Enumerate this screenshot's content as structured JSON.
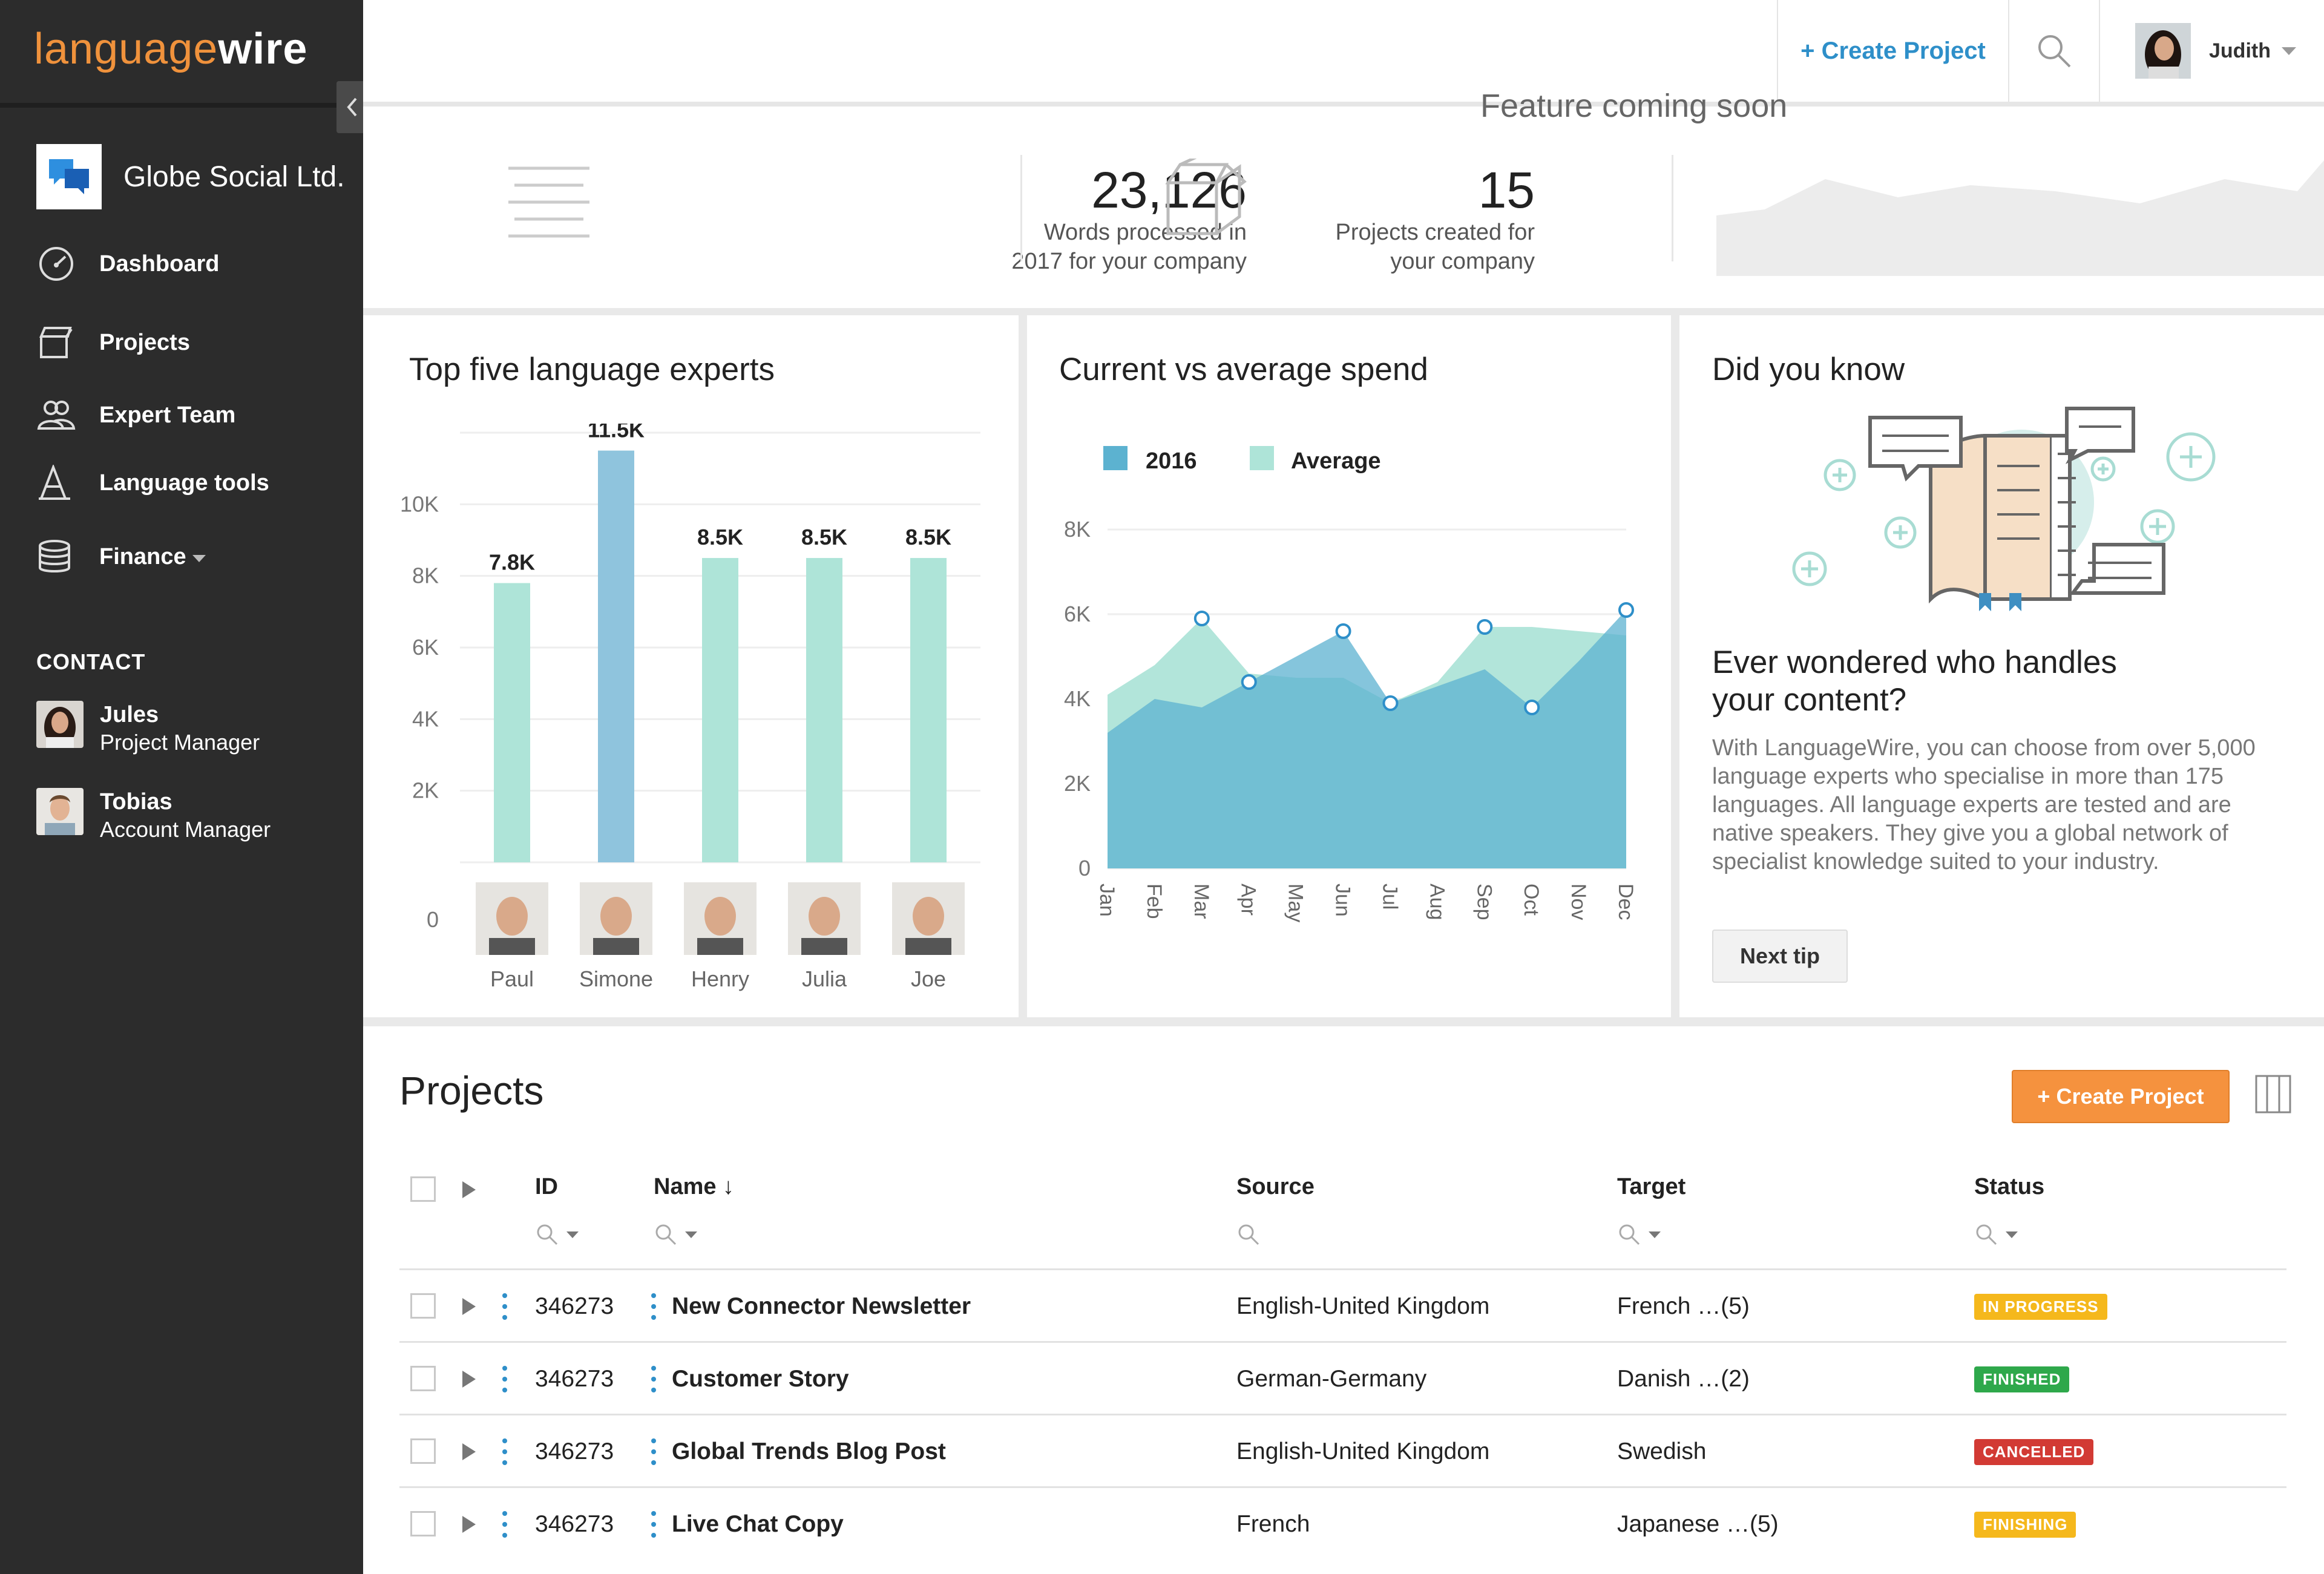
{
  "brand": {
    "logo_part1": "language",
    "logo_part2": "wire",
    "company": "Globe Social Ltd."
  },
  "nav": [
    {
      "label": "Dashboard",
      "icon": "dashboard-gauge-icon"
    },
    {
      "label": "Projects",
      "icon": "box-icon"
    },
    {
      "label": "Expert Team",
      "icon": "team-icon"
    },
    {
      "label": "Language tools",
      "icon": "language-tools-icon"
    },
    {
      "label": "Finance",
      "icon": "coins-icon"
    }
  ],
  "contact": {
    "title": "CONTACT",
    "people": [
      {
        "name": "Jules",
        "role": "Project Manager"
      },
      {
        "name": "Tobias",
        "role": "Account Manager"
      }
    ]
  },
  "topbar": {
    "create_label": "+ Create Project",
    "user_name": "Judith"
  },
  "stats": {
    "words_value": "23,126",
    "words_label_1": "Words processed in",
    "words_label_2": "2017 for your company",
    "projects_value": "15",
    "projects_label_1": "Projects created for",
    "projects_label_2": "your company",
    "feature_text": "Feature coming soon"
  },
  "experts_card": {
    "title": "Top five language experts"
  },
  "spend_card": {
    "title": "Current vs average spend"
  },
  "tip_card": {
    "title": "Did you know",
    "heading_1": "Ever wondered who handles",
    "heading_2": "your content?",
    "body": "With LanguageWire, you can choose from over 5,000 language experts who specialise in more than 175 languages. All language experts are tested and are native speakers. They give you a global network of specialist knowledge suited to your industry.",
    "button": "Next tip"
  },
  "chart_data": [
    {
      "type": "bar",
      "title": "Top five language experts",
      "categories": [
        "Paul",
        "Simone",
        "Henry",
        "Julia",
        "Joe"
      ],
      "values": [
        7800,
        11500,
        8500,
        8500,
        8500
      ],
      "data_labels": [
        "7.8K",
        "11.5K",
        "8.5K",
        "8.5K",
        "8.5K"
      ],
      "highlight_index": 1,
      "y_ticks": [
        "0",
        "2K",
        "4K",
        "6K",
        "8K",
        "10K"
      ],
      "colors": {
        "default": "#aee4d8",
        "highlight": "#8fc4dd"
      }
    },
    {
      "type": "area",
      "title": "Current vs average spend",
      "x": [
        "Jan",
        "Feb",
        "Mar",
        "Apr",
        "May",
        "Jun",
        "Jul",
        "Aug",
        "Sep",
        "Oct",
        "Nov",
        "Dec"
      ],
      "y_ticks": [
        "0",
        "2K",
        "4K",
        "6K",
        "8K"
      ],
      "ylim": [
        0,
        8000
      ],
      "legend_position": "top-left",
      "series": [
        {
          "name": "2016",
          "color": "#5cb2d0",
          "values": [
            3200,
            4000,
            3800,
            4400,
            5000,
            5600,
            3900,
            4300,
            4700,
            3800,
            4900,
            6100
          ]
        },
        {
          "name": "Average",
          "color": "#aee4d8",
          "values": [
            4100,
            4800,
            5900,
            4600,
            4500,
            4500,
            3900,
            4400,
            5700,
            5700,
            5600,
            5500
          ]
        }
      ]
    }
  ],
  "projects": {
    "title": "Projects",
    "create_label": "+ Create Project",
    "columns": {
      "id": "ID",
      "name": "Name ↓",
      "source": "Source",
      "target": "Target",
      "status": "Status"
    },
    "rows": [
      {
        "id": "346273",
        "name": "New Connector Newsletter",
        "source": "English-United Kingdom",
        "target": "French …(5)",
        "status": "IN PROGRESS",
        "status_color": "#f5b81c"
      },
      {
        "id": "346273",
        "name": "Customer Story",
        "source": "German-Germany",
        "target": "Danish …(2)",
        "status": "FINISHED",
        "status_color": "#2ea84b"
      },
      {
        "id": "346273",
        "name": "Global Trends Blog Post",
        "source": "English-United Kingdom",
        "target": "Swedish",
        "status": "CANCELLED",
        "status_color": "#d23a34"
      },
      {
        "id": "346273",
        "name": "Live Chat Copy",
        "source": "French",
        "target": "Japanese …(5)",
        "status": "FINISHING",
        "status_color": "#f5b81c"
      }
    ]
  }
}
